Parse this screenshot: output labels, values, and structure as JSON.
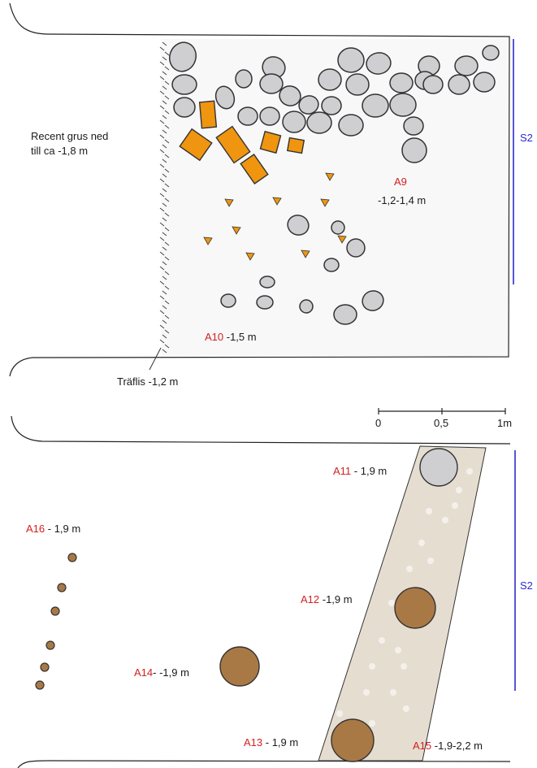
{
  "colors": {
    "stone_fill": "#cfcfd2",
    "stone_stroke": "#333333",
    "brick_fill": "#f0950f",
    "pit_fill": "#a97945",
    "trench_fill": "#e6ddd1",
    "section_line": "#2b2bd0",
    "anomaly_label": "#d42020"
  },
  "upper_plan": {
    "side_note": [
      "Recent grus ned",
      "till ca -1,8 m"
    ],
    "section": "S2",
    "A9": {
      "id": "A9",
      "depth": "-1,2-1,4 m"
    },
    "A10": {
      "id": "A10",
      "depth": " -1,5 m"
    },
    "wood_chips": "Träflis -1,2 m"
  },
  "scale_bar": {
    "ticks": [
      "0",
      "0,5",
      "1m"
    ]
  },
  "lower_plan": {
    "section": "S2",
    "A11": {
      "id": "A11",
      "depth": " - 1,9  m"
    },
    "A12": {
      "id": "A12",
      "depth": " -1,9 m"
    },
    "A13": {
      "id": "A13",
      "depth": " - 1,9 m"
    },
    "A14": {
      "id": "A14",
      "depth": "- -1,9 m"
    },
    "A15": {
      "id": "A15",
      "depth": " -1,9-2,2 m"
    },
    "A16": {
      "id": "A16",
      "depth": " - 1,9 m"
    }
  }
}
